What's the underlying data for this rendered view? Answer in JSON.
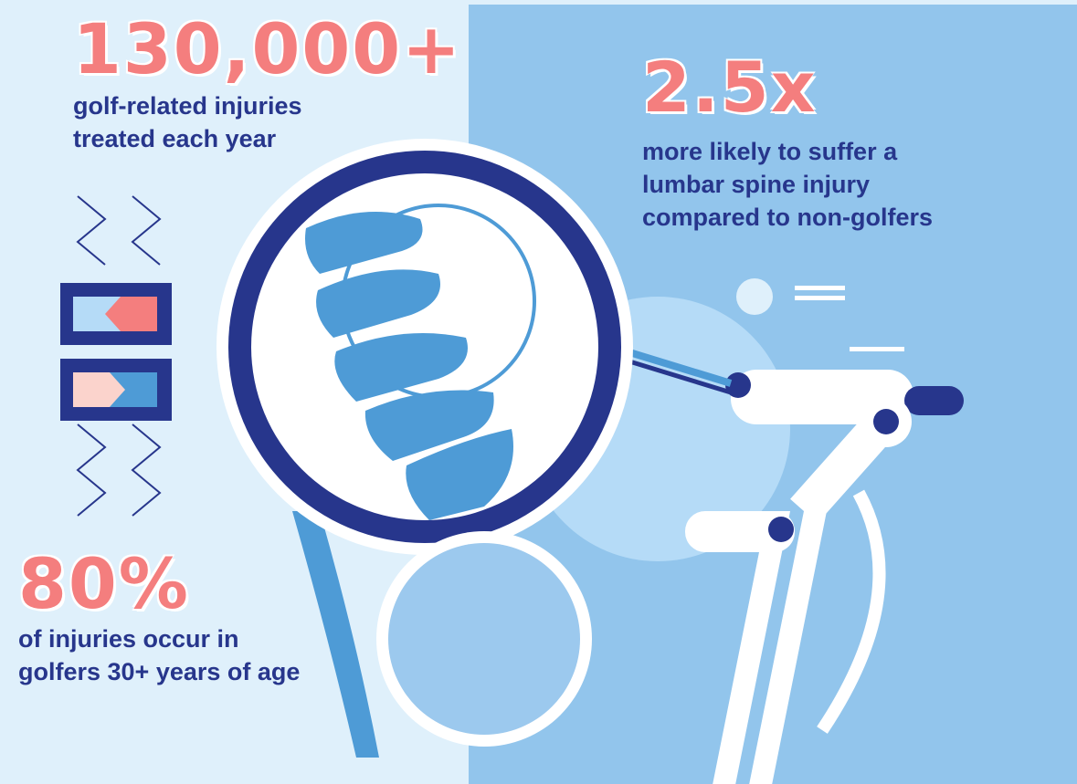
{
  "stats": [
    {
      "figure": "130,000+",
      "lines": [
        "golf-related injuries",
        "treated each year"
      ]
    },
    {
      "figure": "2.5x",
      "lines": [
        "more likely to suffer a",
        "lumbar spine injury",
        "compared to non-golfers"
      ]
    },
    {
      "figure": "80%",
      "lines": [
        "of injuries occur in",
        "golfers 30+ years of age"
      ]
    }
  ]
}
